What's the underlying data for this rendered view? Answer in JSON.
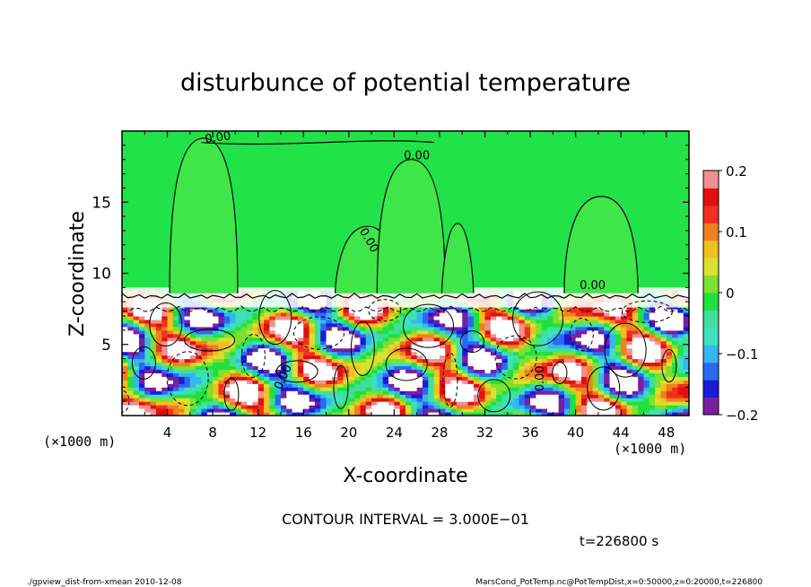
{
  "chart_data": {
    "type": "heatmap",
    "title": "disturbunce of potential temperature",
    "xlabel": "X-coordinate",
    "ylabel": "Z-coordinate",
    "x_unit": "(×1000 m)",
    "x_unit_right": "(×1000 m)",
    "xlim": [
      0,
      50
    ],
    "ylim": [
      0,
      20
    ],
    "x_ticks": [
      4,
      8,
      12,
      16,
      20,
      24,
      28,
      32,
      36,
      40,
      44,
      48
    ],
    "y_ticks": [
      5,
      10,
      15
    ],
    "colorbar": {
      "range": [
        -0.2,
        0.2
      ],
      "tick_labels": [
        "0.2",
        "0.1",
        "0",
        "−0.1",
        "−0.2"
      ],
      "tick_values": [
        0.2,
        0.1,
        0,
        -0.1,
        -0.2
      ],
      "colors": [
        "#7a1fa2",
        "#1a1ad8",
        "#2a6af0",
        "#35b6f0",
        "#3fe0c0",
        "#3fe09a",
        "#20e040",
        "#7ee030",
        "#d8e030",
        "#f0c020",
        "#f08020",
        "#f03020",
        "#e01010",
        "#f09090"
      ]
    },
    "contour_labels": [
      "0.00",
      "0.00",
      "0.00",
      "0.00",
      "0.00",
      "0.00"
    ],
    "contour_interval": "CONTOUR INTERVAL = 3.000E−01",
    "time_label": "t=226800 s",
    "legend_position": "right"
  },
  "footer": {
    "left": "./gpview_dist-from-xmean 2010-12-08",
    "right": "MarsCond_PotTemp.nc@PotTempDist,x=0:50000,z=0:20000,t=226800"
  }
}
